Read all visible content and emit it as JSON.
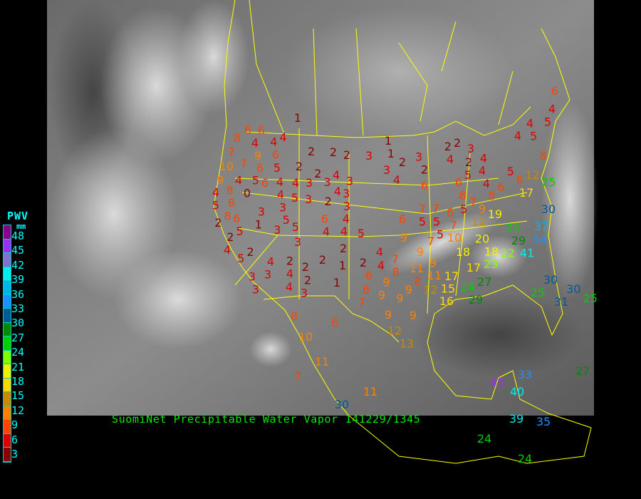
{
  "legend": {
    "title": "PWV",
    "unit": "mm",
    "labels": [
      "48",
      "45",
      "42",
      "39",
      "36",
      "33",
      "30",
      "27",
      "24",
      "21",
      "18",
      "15",
      "12",
      "9",
      "6",
      "3"
    ],
    "colors": [
      "#8b008b",
      "#9a30ee",
      "#8070d0",
      "#00eeee",
      "#00b4e6",
      "#1e8fff",
      "#005a96",
      "#008a00",
      "#00d000",
      "#80ff00",
      "#f0f000",
      "#ffd700",
      "#cc8800",
      "#ff8000",
      "#ff4400",
      "#dd0000",
      "#8b0000"
    ]
  },
  "caption": "SuomiNet Precipitable Water Vapor 141229/1345",
  "colors": {
    "border": "#ffff00",
    "caption": "#00ee00",
    "legend_text": "#00ffff",
    "background": "#000000"
  },
  "stations": [
    1,
    6,
    8,
    6,
    4,
    4,
    4,
    6,
    7,
    9,
    10,
    7,
    6,
    5,
    2,
    5,
    6,
    9,
    4,
    4,
    4,
    3,
    2,
    4,
    3,
    3,
    2,
    2,
    2,
    3,
    1,
    1,
    3,
    4,
    2,
    4,
    8,
    0,
    4,
    5,
    3,
    2,
    4,
    3,
    3,
    4,
    5,
    8,
    8,
    3,
    3,
    5,
    5,
    3,
    1,
    6,
    5,
    2,
    6,
    4,
    4,
    5,
    6,
    9,
    2,
    4,
    5,
    2,
    3,
    4,
    3,
    3,
    3,
    2,
    4,
    2,
    2,
    4,
    3,
    2,
    2,
    1,
    1,
    2,
    4,
    4,
    6,
    7,
    8,
    9,
    6,
    9,
    6,
    4,
    5,
    4,
    5,
    4,
    8,
    12,
    25,
    17,
    5,
    6,
    6,
    8,
    4,
    4,
    4,
    5,
    2,
    3,
    2,
    2,
    4,
    3,
    2,
    6,
    6,
    8,
    7,
    5,
    9,
    19,
    12,
    10,
    6,
    7,
    7,
    7,
    5,
    5,
    5,
    7,
    9,
    30,
    37,
    34,
    41,
    29,
    24,
    22,
    23,
    18,
    20,
    18,
    17,
    9,
    11,
    8,
    11,
    17,
    12,
    15,
    16,
    9,
    9,
    27,
    24,
    29,
    25,
    30,
    30,
    31,
    25,
    27,
    33,
    45,
    40,
    39,
    35,
    24,
    24,
    11,
    30,
    7,
    11,
    10,
    8,
    6,
    12,
    13,
    9,
    9,
    7
  ]
}
